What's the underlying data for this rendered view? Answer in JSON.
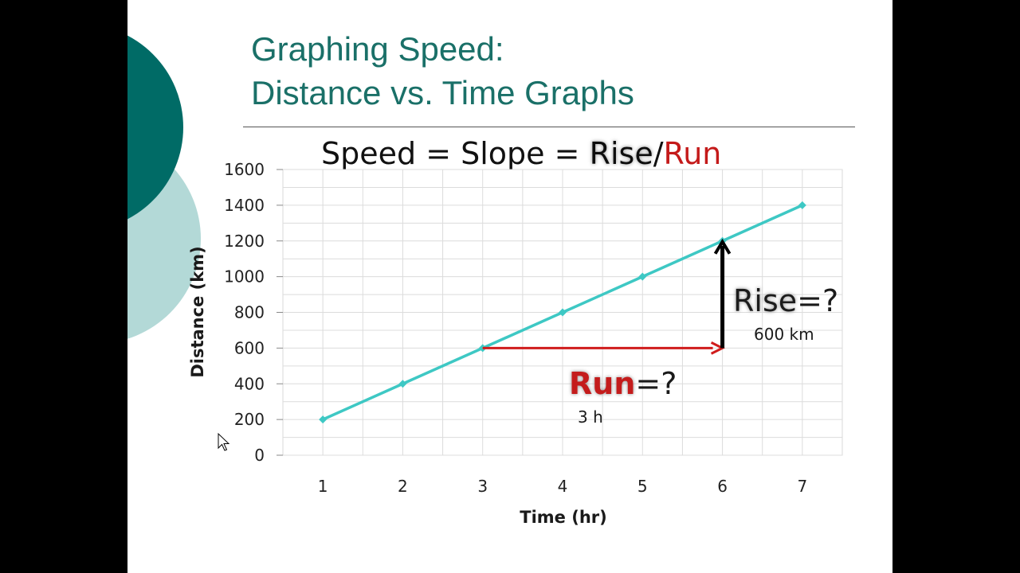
{
  "slide": {
    "title_line1": "Graphing Speed:",
    "title_line2": "Distance vs. Time Graphs",
    "formula": {
      "speed": "Speed",
      "eq1": " = ",
      "slope": "Slope",
      "eq2": " = ",
      "rise": "Rise",
      "slash": "/",
      "run": "Run"
    },
    "colors": {
      "title": "#1a7068",
      "teal_dark": "#006b66",
      "teal_light": "#b3d9d7",
      "series": "#3ec8c4",
      "run_arrow": "#d01c1c",
      "rise_arrow": "#000000"
    }
  },
  "annotations": {
    "rise_label": "Rise",
    "rise_suffix": "=?",
    "rise_value": "600 km",
    "run_label": "Run",
    "run_suffix": "=?",
    "run_value": "3 h"
  },
  "chart_data": {
    "type": "line",
    "xlabel": "Time (hr)",
    "ylabel": "Distance (km)",
    "categories": [
      "1",
      "2",
      "3",
      "4",
      "5",
      "6",
      "7"
    ],
    "x": [
      1,
      2,
      3,
      4,
      5,
      6,
      7
    ],
    "y_ticks": [
      "0",
      "200",
      "400",
      "600",
      "800",
      "1000",
      "1200",
      "1400",
      "1600"
    ],
    "ylim": [
      0,
      1600
    ],
    "grid": true,
    "series": [
      {
        "values": [
          200,
          400,
          600,
          800,
          1000,
          1200,
          1400
        ]
      }
    ],
    "run_arrow": {
      "from": [
        3,
        600
      ],
      "to": [
        6,
        600
      ]
    },
    "rise_arrow": {
      "from": [
        6,
        600
      ],
      "to": [
        6,
        1200
      ]
    }
  }
}
